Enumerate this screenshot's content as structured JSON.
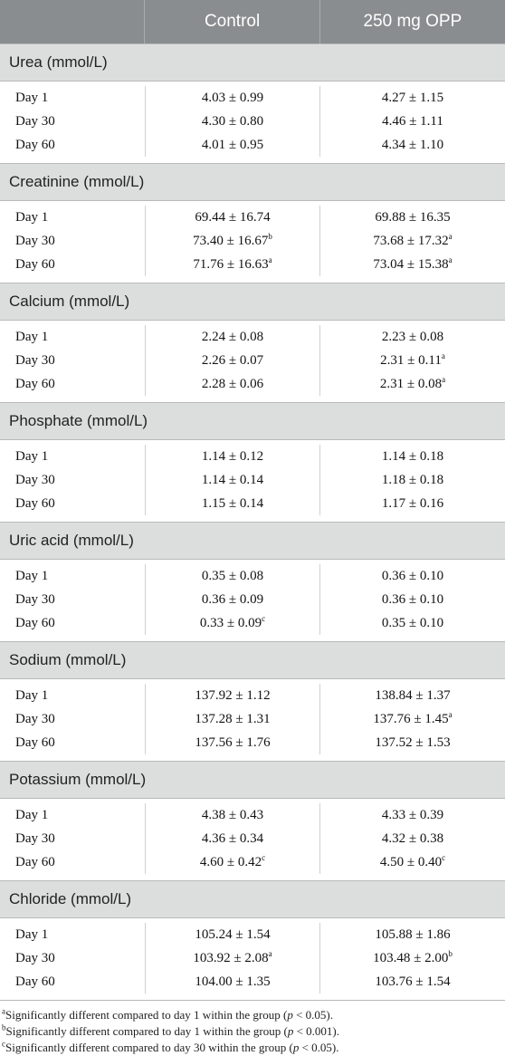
{
  "header": {
    "col0": "",
    "col1": "Control",
    "col2": "250 mg OPP"
  },
  "sections": [
    {
      "title": "Urea (mmol/L)",
      "rows": [
        {
          "label": "Day 1",
          "control": "4.03 ± 0.99",
          "control_sup": "",
          "opp": "4.27 ± 1.15",
          "opp_sup": ""
        },
        {
          "label": "Day 30",
          "control": "4.30 ± 0.80",
          "control_sup": "",
          "opp": "4.46 ± 1.11",
          "opp_sup": ""
        },
        {
          "label": "Day 60",
          "control": "4.01 ± 0.95",
          "control_sup": "",
          "opp": "4.34 ± 1.10",
          "opp_sup": ""
        }
      ]
    },
    {
      "title": "Creatinine (mmol/L)",
      "rows": [
        {
          "label": "Day 1",
          "control": "69.44 ± 16.74",
          "control_sup": "",
          "opp": "69.88 ± 16.35",
          "opp_sup": ""
        },
        {
          "label": "Day 30",
          "control": "73.40 ± 16.67",
          "control_sup": "b",
          "opp": "73.68 ± 17.32",
          "opp_sup": "a"
        },
        {
          "label": "Day 60",
          "control": "71.76 ± 16.63",
          "control_sup": "a",
          "opp": "73.04 ± 15.38",
          "opp_sup": "a"
        }
      ]
    },
    {
      "title": "Calcium (mmol/L)",
      "rows": [
        {
          "label": "Day 1",
          "control": "2.24 ± 0.08",
          "control_sup": "",
          "opp": "2.23 ± 0.08",
          "opp_sup": ""
        },
        {
          "label": "Day 30",
          "control": "2.26 ± 0.07",
          "control_sup": "",
          "opp": "2.31 ± 0.11",
          "opp_sup": "a"
        },
        {
          "label": "Day 60",
          "control": "2.28 ± 0.06",
          "control_sup": "",
          "opp": "2.31 ± 0.08",
          "opp_sup": "a"
        }
      ]
    },
    {
      "title": "Phosphate (mmol/L)",
      "rows": [
        {
          "label": "Day 1",
          "control": "1.14 ± 0.12",
          "control_sup": "",
          "opp": "1.14 ± 0.18",
          "opp_sup": ""
        },
        {
          "label": "Day 30",
          "control": "1.14 ± 0.14",
          "control_sup": "",
          "opp": "1.18 ± 0.18",
          "opp_sup": ""
        },
        {
          "label": "Day 60",
          "control": "1.15 ± 0.14",
          "control_sup": "",
          "opp": "1.17 ± 0.16",
          "opp_sup": ""
        }
      ]
    },
    {
      "title": "Uric acid (mmol/L)",
      "rows": [
        {
          "label": "Day 1",
          "control": "0.35 ± 0.08",
          "control_sup": "",
          "opp": "0.36 ± 0.10",
          "opp_sup": ""
        },
        {
          "label": "Day 30",
          "control": "0.36 ± 0.09",
          "control_sup": "",
          "opp": "0.36 ± 0.10",
          "opp_sup": ""
        },
        {
          "label": "Day 60",
          "control": "0.33 ± 0.09",
          "control_sup": "c",
          "opp": "0.35 ± 0.10",
          "opp_sup": ""
        }
      ]
    },
    {
      "title": "Sodium (mmol/L)",
      "rows": [
        {
          "label": "Day 1",
          "control": "137.92 ± 1.12",
          "control_sup": "",
          "opp": "138.84 ± 1.37",
          "opp_sup": ""
        },
        {
          "label": "Day 30",
          "control": "137.28 ± 1.31",
          "control_sup": "",
          "opp": "137.76 ± 1.45",
          "opp_sup": "a"
        },
        {
          "label": "Day 60",
          "control": "137.56 ± 1.76",
          "control_sup": "",
          "opp": "137.52 ± 1.53",
          "opp_sup": ""
        }
      ]
    },
    {
      "title": "Potassium (mmol/L)",
      "rows": [
        {
          "label": "Day 1",
          "control": "4.38 ± 0.43",
          "control_sup": "",
          "opp": "4.33 ± 0.39",
          "opp_sup": ""
        },
        {
          "label": "Day 30",
          "control": "4.36 ± 0.34",
          "control_sup": "",
          "opp": "4.32 ± 0.38",
          "opp_sup": ""
        },
        {
          "label": "Day 60",
          "control": "4.60 ± 0.42",
          "control_sup": "c",
          "opp": "4.50 ± 0.40",
          "opp_sup": "c"
        }
      ]
    },
    {
      "title": "Chloride (mmol/L)",
      "rows": [
        {
          "label": "Day 1",
          "control": "105.24 ± 1.54",
          "control_sup": "",
          "opp": "105.88 ± 1.86",
          "opp_sup": ""
        },
        {
          "label": "Day 30",
          "control": "103.92 ± 2.08",
          "control_sup": "a",
          "opp": "103.48 ± 2.00",
          "opp_sup": "b"
        },
        {
          "label": "Day 60",
          "control": "104.00 ± 1.35",
          "control_sup": "",
          "opp": "103.76 ± 1.54",
          "opp_sup": ""
        }
      ]
    }
  ],
  "footnotes": [
    {
      "mark": "a",
      "pre": "Significantly different compared to day 1 within the group (",
      "p": "p",
      "post": " < 0.05)."
    },
    {
      "mark": "b",
      "pre": "Significantly different compared to day 1 within the group (",
      "p": "p",
      "post": " < 0.001)."
    },
    {
      "mark": "c",
      "pre": "Significantly different compared to day 30 within the group (",
      "p": "p",
      "post": " < 0.05)."
    }
  ]
}
